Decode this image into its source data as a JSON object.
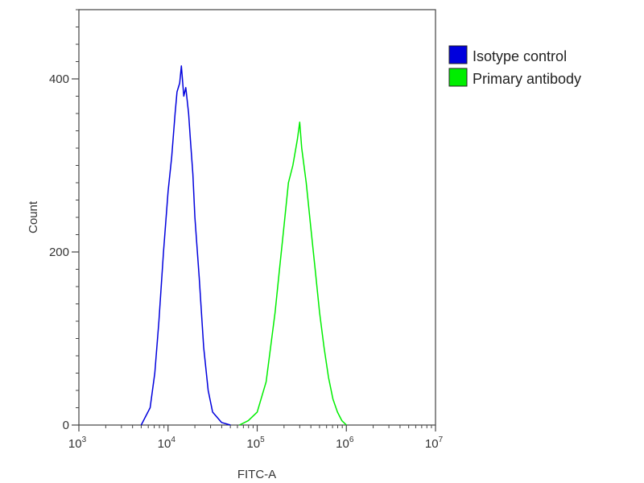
{
  "chart_data": {
    "type": "line",
    "xlabel": "FITC-A",
    "ylabel": "Count",
    "x_scale": "log",
    "xlim": [
      1000,
      10000000
    ],
    "ylim": [
      0,
      480
    ],
    "x_ticks": [
      {
        "base": "10",
        "exp": "3",
        "value": 1000
      },
      {
        "base": "10",
        "exp": "4",
        "value": 10000
      },
      {
        "base": "10",
        "exp": "5",
        "value": 100000
      },
      {
        "base": "10",
        "exp": "6",
        "value": 1000000
      },
      {
        "base": "10",
        "exp": "7",
        "value": 10000000
      }
    ],
    "y_ticks": [
      {
        "label": "0",
        "value": 0
      },
      {
        "label": "200",
        "value": 200
      },
      {
        "label": "400",
        "value": 400
      }
    ],
    "grid": false,
    "legend_position": "top-right-outside",
    "series": [
      {
        "name": "Isotype control",
        "color": "#0000dd",
        "x": [
          5000,
          6300,
          7100,
          7900,
          8900,
          10000,
          11000,
          12000,
          12600,
          13500,
          14100,
          15000,
          15800,
          17000,
          17800,
          19000,
          20000,
          22400,
          25100,
          28200,
          31600,
          39800,
          50100
        ],
        "y": [
          0,
          20,
          60,
          120,
          200,
          270,
          310,
          360,
          385,
          395,
          415,
          380,
          390,
          360,
          330,
          290,
          240,
          170,
          90,
          40,
          15,
          3,
          0
        ]
      },
      {
        "name": "Primary antibody",
        "color": "#00ee00",
        "x": [
          63100,
          79400,
          100000,
          125900,
          158500,
          178000,
          200000,
          224000,
          251000,
          282000,
          300000,
          316000,
          355000,
          398000,
          447000,
          501000,
          562000,
          631000,
          708000,
          794000,
          891000,
          1000000
        ],
        "y": [
          0,
          5,
          15,
          50,
          130,
          180,
          230,
          280,
          300,
          330,
          350,
          320,
          280,
          230,
          180,
          130,
          90,
          55,
          30,
          15,
          5,
          0
        ]
      }
    ]
  }
}
